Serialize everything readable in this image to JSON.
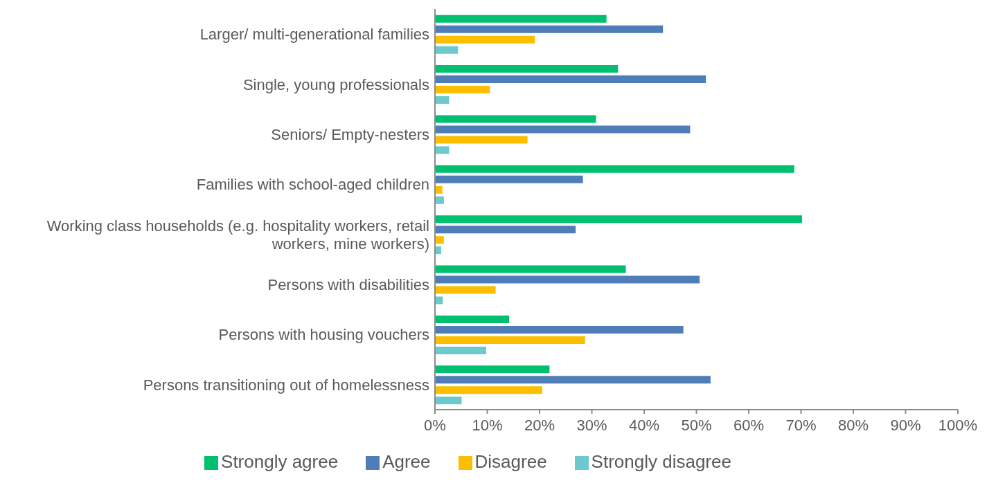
{
  "chart_data": {
    "type": "bar",
    "orientation": "horizontal",
    "categories": [
      "Larger/ multi-generational families",
      "Single, young professionals",
      "Seniors/ Empty-nesters",
      "Families with school-aged children",
      "Working class households (e.g. hospitality workers, retail workers, mine workers)",
      "Persons with disabilities",
      "Persons with housing vouchers",
      "Persons transitioning out of homelessness"
    ],
    "series": [
      {
        "name": "Strongly agree",
        "color": "#00c070",
        "values": [
          32.8,
          35.0,
          30.8,
          68.7,
          70.2,
          36.5,
          14.2,
          21.9
        ]
      },
      {
        "name": "Agree",
        "color": "#4f7db8",
        "values": [
          43.6,
          51.8,
          48.8,
          28.3,
          26.9,
          50.6,
          47.5,
          52.7
        ]
      },
      {
        "name": "Disagree",
        "color": "#fbbf00",
        "values": [
          19.1,
          10.5,
          17.7,
          1.4,
          1.7,
          11.6,
          28.7,
          20.5
        ]
      },
      {
        "name": "Strongly disagree",
        "color": "#6cc9cc",
        "values": [
          4.4,
          2.7,
          2.7,
          1.7,
          1.2,
          1.5,
          9.8,
          5.1
        ]
      }
    ],
    "xlim": [
      0,
      100
    ],
    "xticks": [
      {
        "value": 0,
        "label": "0%"
      },
      {
        "value": 10,
        "label": "10%"
      },
      {
        "value": 20,
        "label": "20%"
      },
      {
        "value": 30,
        "label": "30%"
      },
      {
        "value": 40,
        "label": "40%"
      },
      {
        "value": 50,
        "label": "50%"
      },
      {
        "value": 60,
        "label": "60%"
      },
      {
        "value": 70,
        "label": "70%"
      },
      {
        "value": 80,
        "label": "80%"
      },
      {
        "value": 90,
        "label": "90%"
      },
      {
        "value": 100,
        "label": "100%"
      }
    ],
    "grid": false,
    "legend": "bottom"
  }
}
